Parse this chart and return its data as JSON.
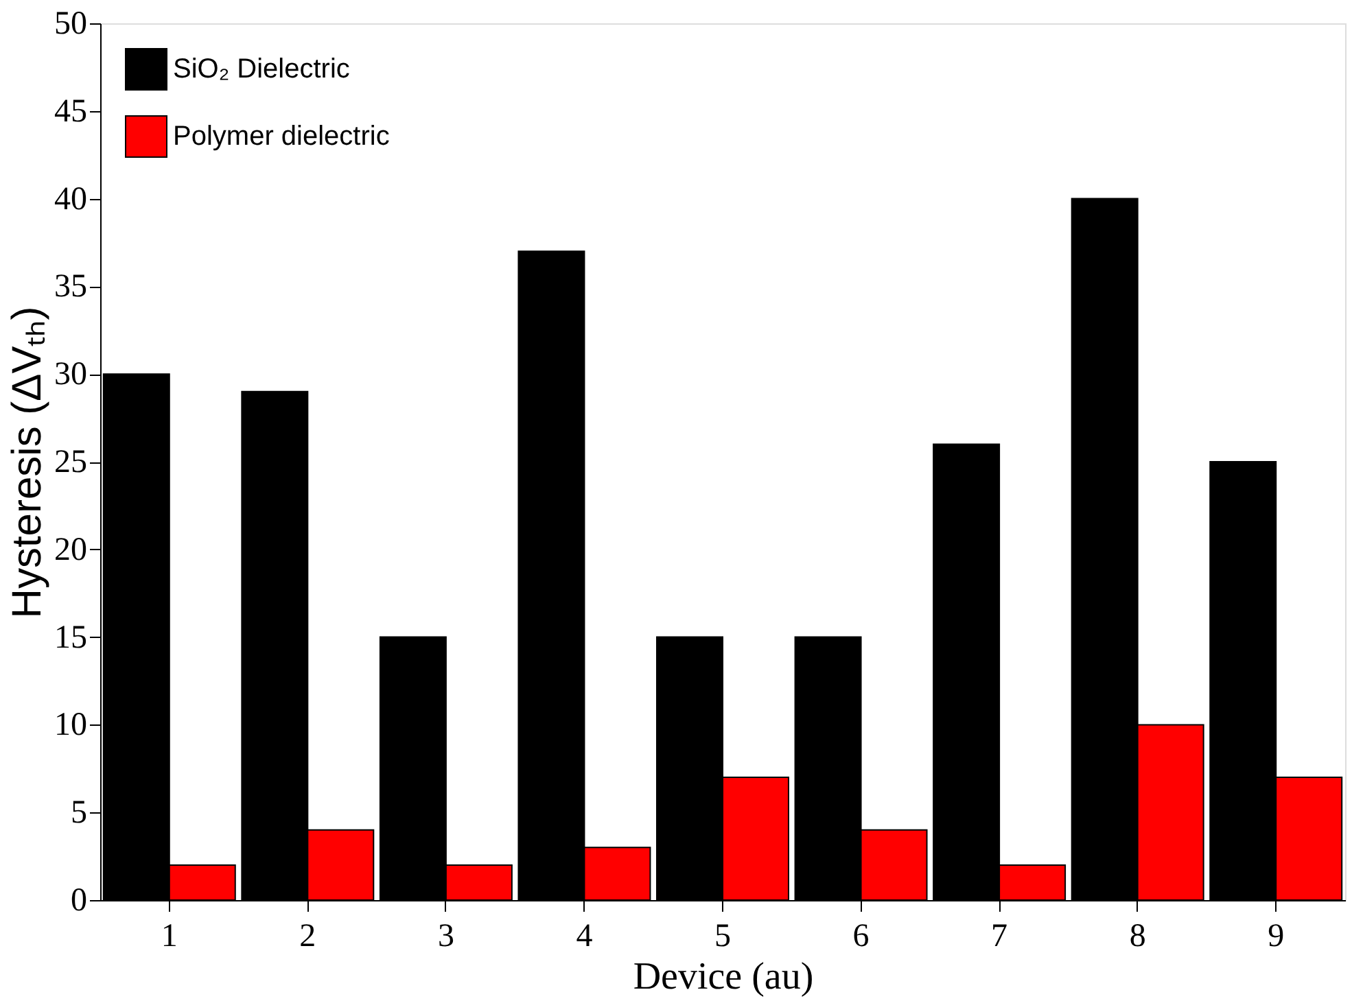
{
  "chart_data": {
    "type": "bar",
    "xlabel": "Device (au)",
    "ylabel": "Hysteresis (ΔVₜₕ)",
    "categories": [
      "1",
      "2",
      "3",
      "4",
      "5",
      "6",
      "7",
      "8",
      "9"
    ],
    "series": [
      {
        "name": "SiO₂ Dielectric",
        "color": "#000000",
        "values": [
          30,
          29,
          15,
          37,
          15,
          15,
          26,
          40,
          25
        ]
      },
      {
        "name": "Polymer dielectric",
        "color": "#ff0000",
        "values": [
          2,
          4,
          2,
          3,
          7,
          4,
          2,
          10,
          7
        ]
      }
    ],
    "ylim": [
      0,
      50
    ],
    "yticks": [
      0,
      5,
      10,
      15,
      20,
      25,
      30,
      35,
      40,
      45,
      50
    ],
    "grid": false,
    "legend": "top left"
  }
}
